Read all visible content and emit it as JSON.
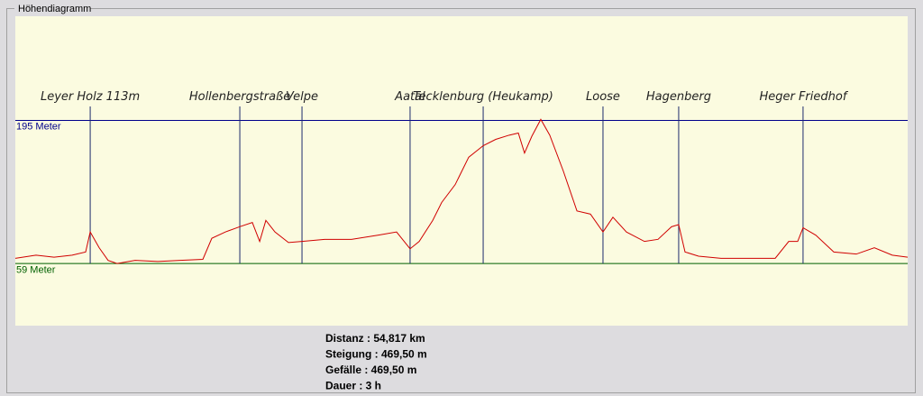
{
  "group_title": "Höhendiagramm",
  "chart_data": {
    "type": "line",
    "x": [
      0,
      1.27,
      2.38,
      3.49,
      4.32,
      4.6,
      5.15,
      5.7,
      6.26,
      7.36,
      8.75,
      10.13,
      11.52,
      12.07,
      12.9,
      13.79,
      14.56,
      15.01,
      15.39,
      15.95,
      16.78,
      17.61,
      19.0,
      20.65,
      22.31,
      23.42,
      24.25,
      24.81,
      25.64,
      26.19,
      27.02,
      27.85,
      28.74,
      29.51,
      30.34,
      30.9,
      31.28,
      31.73,
      32.28,
      32.83,
      33.66,
      34.5,
      35.33,
      36.1,
      36.71,
      37.54,
      38.65,
      39.48,
      40.31,
      40.75,
      41.14,
      41.97,
      43.35,
      45.02,
      46.68,
      47.51,
      48.06,
      48.39,
      49.17,
      50.28,
      51.66,
      52.77,
      53.87,
      54.817
    ],
    "values": [
      64,
      67,
      65,
      67,
      70,
      89,
      74,
      62,
      59,
      62,
      61,
      62,
      63,
      83,
      89,
      94,
      98,
      80,
      100,
      89,
      79,
      80,
      82,
      82,
      86,
      89,
      73,
      80,
      100,
      117,
      134,
      160,
      171,
      177,
      181,
      183,
      164,
      180,
      196,
      181,
      147,
      109,
      106,
      89,
      103,
      89,
      80,
      82,
      94,
      96,
      70,
      66,
      64,
      64,
      64,
      80,
      80,
      93,
      86,
      70,
      68,
      74,
      67,
      65
    ],
    "color": "#d00000",
    "xlim": [
      0,
      54.817
    ],
    "ylim": [
      0,
      294
    ],
    "yticks": [
      {
        "value": 59,
        "label": "59 Meter"
      },
      {
        "value": 195,
        "label": "195 Meter"
      }
    ],
    "ytick_colors": [
      "#006000",
      "#00008b"
    ],
    "markers": [
      {
        "x": 4.6,
        "label": "Leyer Holz 113m"
      },
      {
        "x": 13.79,
        "label": "Hollenbergstraße"
      },
      {
        "x": 17.61,
        "label": "Velpe"
      },
      {
        "x": 24.25,
        "label": "Aatal"
      },
      {
        "x": 28.74,
        "label": "Tecklenburg (Heukamp)"
      },
      {
        "x": 36.1,
        "label": "Loose"
      },
      {
        "x": 40.75,
        "label": "Hagenberg"
      },
      {
        "x": 48.39,
        "label": "Heger Friedhof"
      }
    ]
  },
  "stats": [
    "Distanz : 54,817 km",
    "Steigung : 469,50 m",
    "Gefälle : 469,50 m",
    "Dauer : 3 h"
  ]
}
